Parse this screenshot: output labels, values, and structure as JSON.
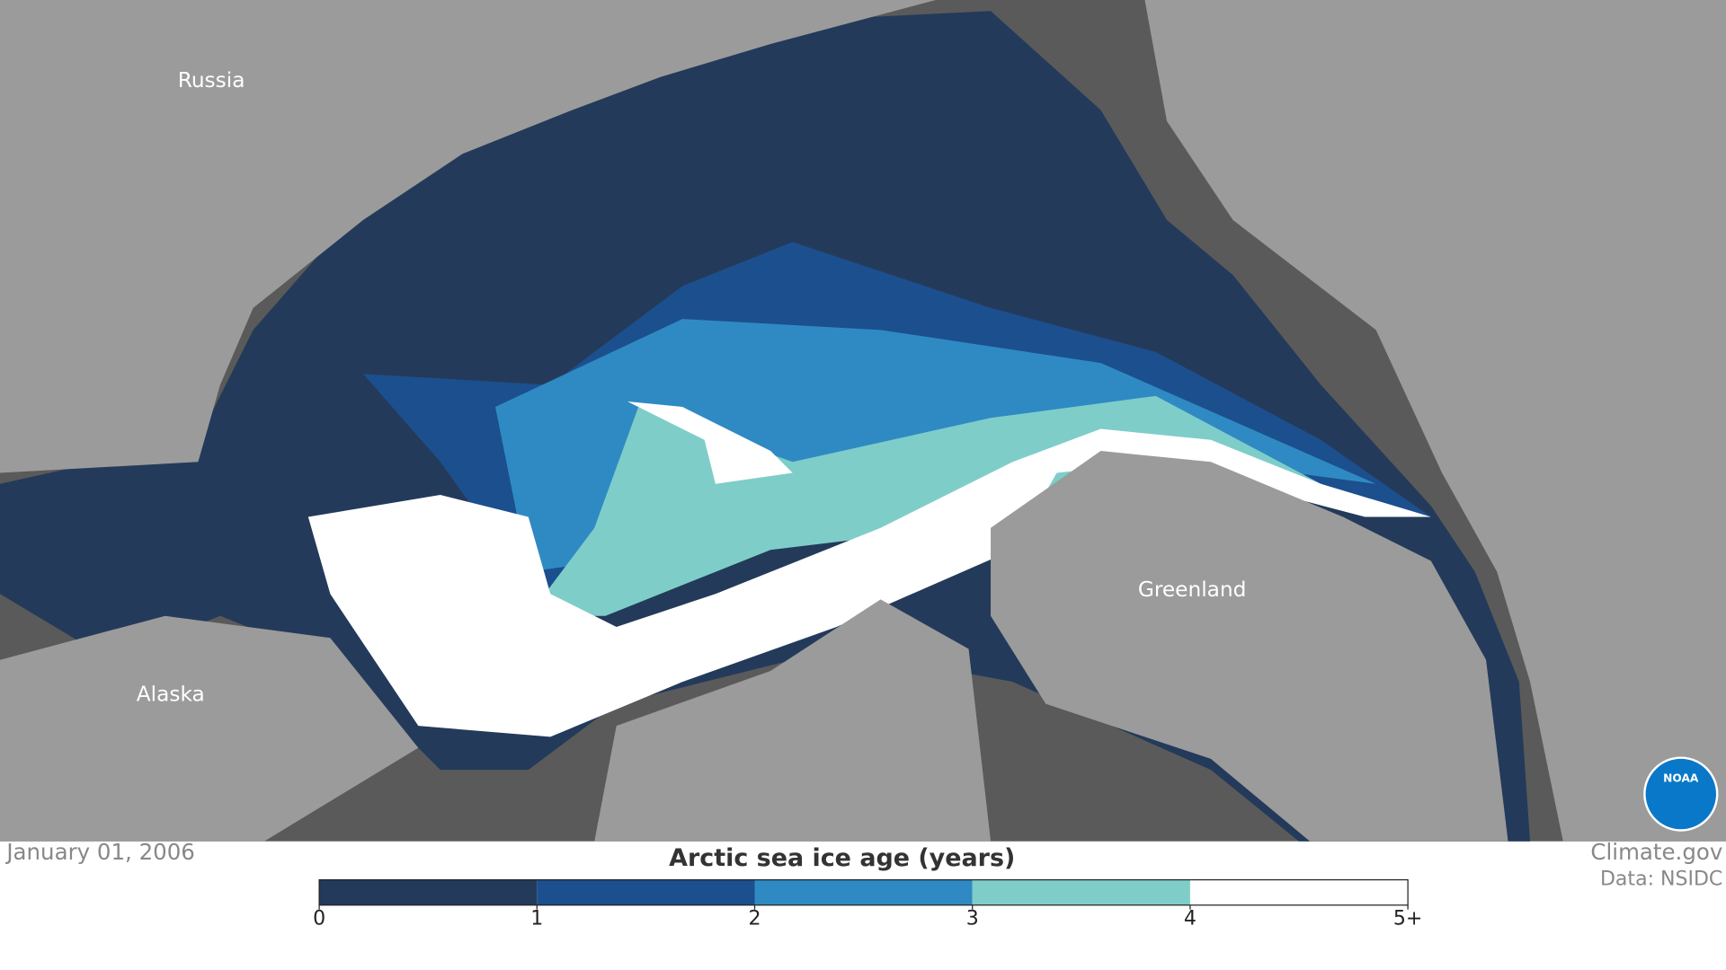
{
  "map": {
    "labels": [
      "Russia",
      "Alaska",
      "Greenland"
    ],
    "logo": "NOAA"
  },
  "footer": {
    "date": "January 01, 2006",
    "credit": "Climate.gov",
    "source": "Data: NSIDC"
  },
  "legend": {
    "title": "Arctic sea ice age (years)",
    "ticks": [
      0,
      1,
      2,
      3,
      4,
      {
        "value": 5,
        "label": "5+"
      }
    ],
    "colors": [
      "#243a5a",
      "#1c4f8e",
      "#2f8ac3",
      "#7ecdc9",
      "#ffffff"
    ]
  }
}
